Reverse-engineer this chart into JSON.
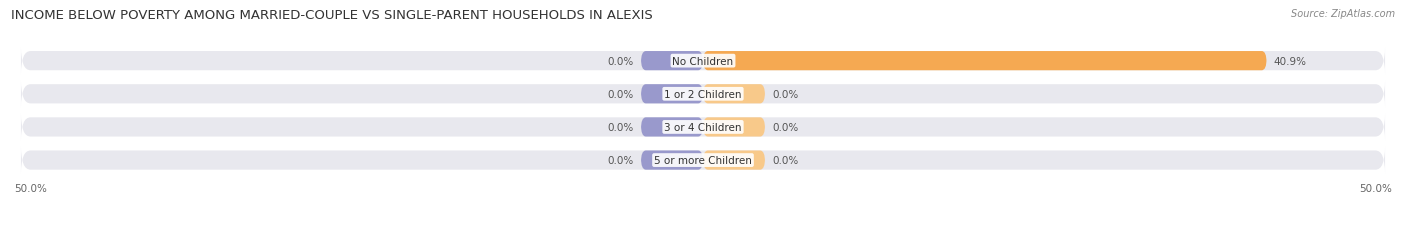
{
  "title": "INCOME BELOW POVERTY AMONG MARRIED-COUPLE VS SINGLE-PARENT HOUSEHOLDS IN ALEXIS",
  "source": "Source: ZipAtlas.com",
  "categories": [
    "No Children",
    "1 or 2 Children",
    "3 or 4 Children",
    "5 or more Children"
  ],
  "married_values": [
    0.0,
    0.0,
    0.0,
    0.0
  ],
  "single_values": [
    40.9,
    0.0,
    0.0,
    0.0
  ],
  "xlim": [
    -50.0,
    50.0
  ],
  "married_color": "#9999cc",
  "single_color": "#f5a952",
  "single_color_light": "#f8c98a",
  "bg_bar_color": "#e8e8ee",
  "bar_height": 0.58,
  "title_fontsize": 9.5,
  "label_fontsize": 7.5,
  "legend_fontsize": 8,
  "source_fontsize": 7,
  "axis_label_fontsize": 7.5,
  "stub_size": 4.5
}
